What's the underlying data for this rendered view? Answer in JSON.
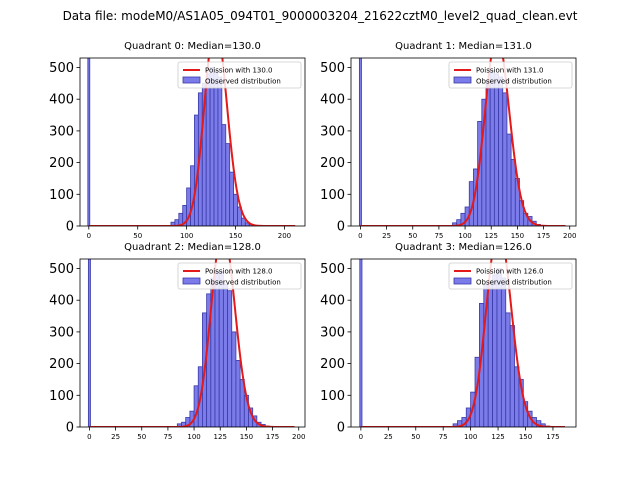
{
  "figure_title": "Data file: modeM0/AS1A05_094T01_9000003204_21622cztM0_level2_quad_clean.evt",
  "colors": {
    "bar_fill": "#7b7bea",
    "bar_edge": "#3a3aa8",
    "poisson": "#e41a1a"
  },
  "chart_data": [
    {
      "type": "bar",
      "title": "Quadrant 0: Median=130.0",
      "median": 130.0,
      "xlim": [
        -9,
        221
      ],
      "ylim": [
        0,
        530
      ],
      "xticks": [
        0,
        50,
        100,
        150,
        200
      ],
      "yticks": [
        0,
        100,
        200,
        300,
        400,
        500
      ],
      "bin_width": 4,
      "bars": [
        [
          0,
          540
        ],
        [
          86,
          12
        ],
        [
          90,
          20
        ],
        [
          94,
          40
        ],
        [
          98,
          65
        ],
        [
          102,
          120
        ],
        [
          106,
          190
        ],
        [
          110,
          350
        ],
        [
          114,
          420
        ],
        [
          118,
          450
        ],
        [
          122,
          480
        ],
        [
          126,
          500
        ],
        [
          130,
          490
        ],
        [
          134,
          470
        ],
        [
          138,
          320
        ],
        [
          142,
          260
        ],
        [
          146,
          170
        ],
        [
          150,
          100
        ],
        [
          154,
          60
        ],
        [
          158,
          25
        ],
        [
          162,
          10
        ],
        [
          166,
          5
        ],
        [
          170,
          2
        ]
      ],
      "legend": [
        "Poission with 130.0",
        "Observed distribution"
      ]
    },
    {
      "type": "bar",
      "title": "Quadrant 1: Median=131.0",
      "median": 131.0,
      "xlim": [
        -9,
        206
      ],
      "ylim": [
        0,
        530
      ],
      "xticks": [
        0,
        25,
        50,
        75,
        100,
        125,
        150,
        175,
        200
      ],
      "yticks": [
        0,
        100,
        200,
        300,
        400,
        500
      ],
      "bin_width": 4,
      "bars": [
        [
          0,
          540
        ],
        [
          90,
          10
        ],
        [
          94,
          20
        ],
        [
          98,
          40
        ],
        [
          102,
          60
        ],
        [
          106,
          140
        ],
        [
          110,
          180
        ],
        [
          114,
          330
        ],
        [
          118,
          400
        ],
        [
          122,
          460
        ],
        [
          126,
          490
        ],
        [
          130,
          480
        ],
        [
          134,
          470
        ],
        [
          138,
          420
        ],
        [
          142,
          290
        ],
        [
          146,
          210
        ],
        [
          150,
          150
        ],
        [
          154,
          80
        ],
        [
          158,
          40
        ],
        [
          162,
          30
        ],
        [
          166,
          15
        ],
        [
          170,
          5
        ]
      ],
      "legend": [
        "Poission with 131.0",
        "Observed distribution"
      ]
    },
    {
      "type": "bar",
      "title": "Quadrant 2: Median=128.0",
      "median": 128.0,
      "xlim": [
        -9,
        206
      ],
      "ylim": [
        0,
        530
      ],
      "xticks": [
        0,
        25,
        50,
        75,
        100,
        125,
        150,
        175,
        200
      ],
      "yticks": [
        0,
        100,
        200,
        300,
        400,
        500
      ],
      "bin_width": 4,
      "bars": [
        [
          0,
          540
        ],
        [
          86,
          10
        ],
        [
          90,
          15
        ],
        [
          94,
          30
        ],
        [
          98,
          50
        ],
        [
          102,
          130
        ],
        [
          106,
          190
        ],
        [
          110,
          360
        ],
        [
          114,
          420
        ],
        [
          118,
          470
        ],
        [
          122,
          490
        ],
        [
          126,
          490
        ],
        [
          130,
          450
        ],
        [
          134,
          430
        ],
        [
          138,
          300
        ],
        [
          142,
          210
        ],
        [
          146,
          150
        ],
        [
          150,
          100
        ],
        [
          154,
          60
        ],
        [
          158,
          35
        ],
        [
          162,
          15
        ],
        [
          166,
          8
        ],
        [
          170,
          3
        ]
      ],
      "legend": [
        "Poission with 128.0",
        "Observed distribution"
      ]
    },
    {
      "type": "bar",
      "title": "Quadrant 3: Median=126.0",
      "median": 126.0,
      "xlim": [
        -9,
        196
      ],
      "ylim": [
        0,
        530
      ],
      "xticks": [
        0,
        25,
        50,
        75,
        100,
        125,
        150,
        175
      ],
      "yticks": [
        0,
        100,
        200,
        300,
        400,
        500
      ],
      "bin_width": 4,
      "bars": [
        [
          0,
          540
        ],
        [
          86,
          10
        ],
        [
          90,
          20
        ],
        [
          94,
          30
        ],
        [
          98,
          60
        ],
        [
          102,
          110
        ],
        [
          106,
          220
        ],
        [
          110,
          390
        ],
        [
          114,
          450
        ],
        [
          118,
          460
        ],
        [
          122,
          480
        ],
        [
          126,
          500
        ],
        [
          130,
          470
        ],
        [
          134,
          360
        ],
        [
          138,
          320
        ],
        [
          142,
          190
        ],
        [
          146,
          150
        ],
        [
          150,
          80
        ],
        [
          154,
          50
        ],
        [
          158,
          30
        ],
        [
          162,
          20
        ],
        [
          166,
          10
        ],
        [
          170,
          3
        ]
      ],
      "legend": [
        "Poission with 126.0",
        "Observed distribution"
      ]
    }
  ]
}
